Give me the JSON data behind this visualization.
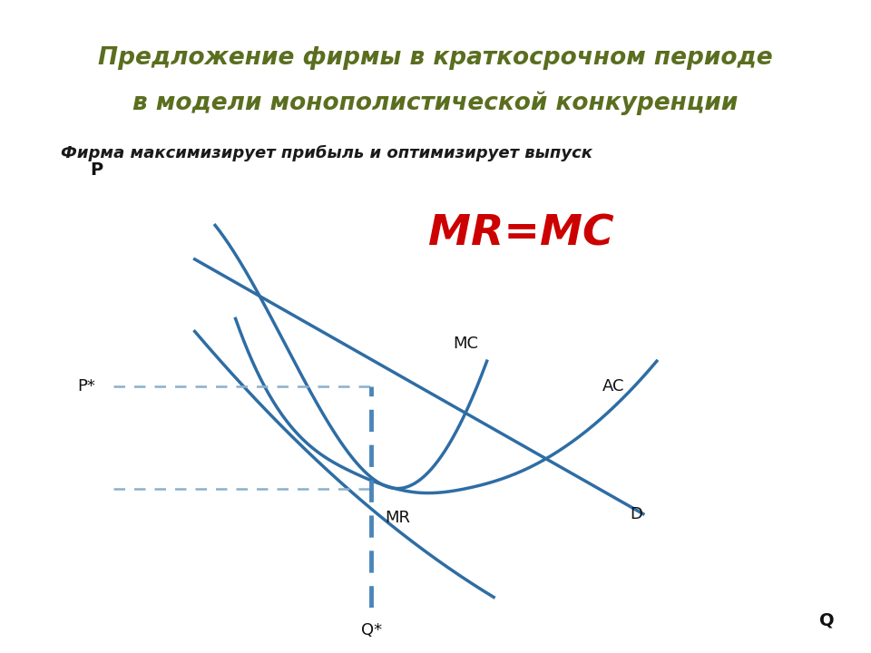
{
  "title_line1": "Предложение фирмы в краткосрочном периоде",
  "title_line2": "в модели монополистической конкуренции",
  "subtitle": "Фирма максимизирует прибыль и оптимизирует выпуск",
  "mr_mc_label": "MR=MC",
  "title_bg_color": "#e8ecda",
  "title_text_color": "#5a6e1f",
  "subtitle_text_color": "#1a1a1a",
  "mr_mc_color": "#cc0000",
  "curve_color": "#2e6da4",
  "dashed_color_h": "#8ab0cc",
  "dashed_color_v": "#4a86b8",
  "axis_color": "#111111",
  "background_color": "#ffffff"
}
